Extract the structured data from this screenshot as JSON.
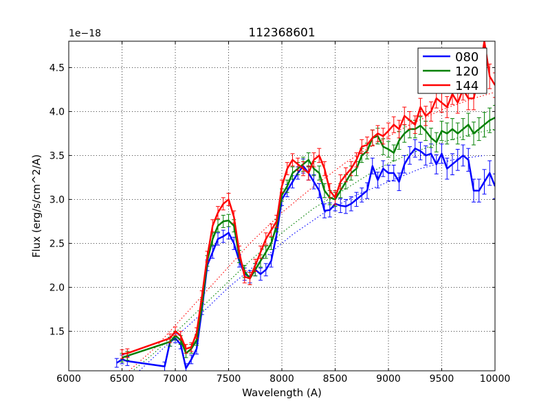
{
  "chart_data": {
    "type": "line",
    "title": "112368601",
    "xlabel": "Wavelength (A)",
    "ylabel": "Flux (erg/s/cm^2/A)",
    "offset_text": "1e−18",
    "xlim": [
      6000,
      10000
    ],
    "ylim": [
      1.05,
      4.8
    ],
    "xticks": [
      6000,
      6500,
      7000,
      7500,
      8000,
      8500,
      9000,
      9500,
      10000
    ],
    "xtick_labels": [
      "6000",
      "6500",
      "7000",
      "7500",
      "8000",
      "8500",
      "9000",
      "9500",
      "10000"
    ],
    "yticks": [
      1.5,
      2.0,
      2.5,
      3.0,
      3.5,
      4.0,
      4.5
    ],
    "ytick_labels": [
      "1.5",
      "2.0",
      "2.5",
      "3.0",
      "3.5",
      "4.0",
      "4.5"
    ],
    "grid": true,
    "legend_position": "top-right",
    "series": [
      {
        "name": "080",
        "color": "#0000ff",
        "x": [
          6450,
          6500,
          6550,
          6900,
          6950,
          7000,
          7050,
          7100,
          7150,
          7200,
          7250,
          7300,
          7350,
          7400,
          7450,
          7500,
          7550,
          7600,
          7650,
          7700,
          7750,
          7800,
          7850,
          7900,
          7950,
          8000,
          8050,
          8100,
          8150,
          8200,
          8250,
          8300,
          8350,
          8400,
          8450,
          8500,
          8550,
          8600,
          8650,
          8700,
          8750,
          8800,
          8850,
          8900,
          8950,
          9000,
          9050,
          9100,
          9150,
          9200,
          9250,
          9300,
          9350,
          9400,
          9450,
          9500,
          9550,
          9600,
          9650,
          9700,
          9750,
          9800,
          9850,
          9900,
          9950,
          10000
        ],
        "y": [
          1.14,
          1.18,
          1.16,
          1.1,
          1.38,
          1.42,
          1.35,
          1.08,
          1.18,
          1.3,
          1.75,
          2.25,
          2.4,
          2.55,
          2.58,
          2.62,
          2.5,
          2.3,
          2.15,
          2.12,
          2.2,
          2.15,
          2.2,
          2.3,
          2.6,
          3.0,
          3.1,
          3.2,
          3.3,
          3.38,
          3.3,
          3.2,
          3.1,
          2.87,
          2.88,
          2.95,
          2.93,
          2.92,
          2.95,
          3.0,
          3.05,
          3.1,
          3.38,
          3.22,
          3.35,
          3.3,
          3.3,
          3.2,
          3.4,
          3.5,
          3.58,
          3.55,
          3.5,
          3.52,
          3.4,
          3.52,
          3.35,
          3.4,
          3.45,
          3.5,
          3.45,
          3.1,
          3.1,
          3.2,
          3.3,
          3.15
        ],
        "error": [
          0.05,
          0.05,
          0.05,
          0.05,
          0.05,
          0.05,
          0.05,
          0.05,
          0.05,
          0.06,
          0.06,
          0.06,
          0.07,
          0.07,
          0.07,
          0.07,
          0.07,
          0.07,
          0.07,
          0.07,
          0.07,
          0.07,
          0.07,
          0.07,
          0.07,
          0.07,
          0.07,
          0.07,
          0.07,
          0.08,
          0.08,
          0.08,
          0.08,
          0.08,
          0.08,
          0.08,
          0.08,
          0.08,
          0.08,
          0.08,
          0.08,
          0.09,
          0.09,
          0.09,
          0.09,
          0.09,
          0.09,
          0.1,
          0.1,
          0.1,
          0.1,
          0.1,
          0.11,
          0.11,
          0.11,
          0.11,
          0.12,
          0.12,
          0.12,
          0.12,
          0.13,
          0.13,
          0.13,
          0.14,
          0.14,
          0.14
        ]
      },
      {
        "name": "120",
        "color": "#008000",
        "x": [
          6500,
          6550,
          6950,
          7000,
          7050,
          7100,
          7150,
          7200,
          7250,
          7300,
          7350,
          7400,
          7450,
          7500,
          7550,
          7600,
          7650,
          7700,
          7750,
          7800,
          7850,
          7900,
          7950,
          8000,
          8050,
          8100,
          8150,
          8200,
          8250,
          8300,
          8350,
          8400,
          8450,
          8500,
          8550,
          8600,
          8650,
          8700,
          8750,
          8800,
          8850,
          8900,
          8950,
          9000,
          9050,
          9100,
          9150,
          9200,
          9250,
          9300,
          9350,
          9400,
          9450,
          9500,
          9550,
          9600,
          9650,
          9700,
          9750,
          9800,
          9850,
          9900,
          9950,
          10000
        ],
        "y": [
          1.2,
          1.22,
          1.38,
          1.45,
          1.4,
          1.25,
          1.3,
          1.4,
          1.8,
          2.3,
          2.55,
          2.7,
          2.75,
          2.76,
          2.7,
          2.35,
          2.18,
          2.1,
          2.2,
          2.3,
          2.4,
          2.5,
          2.7,
          3.05,
          3.15,
          3.3,
          3.35,
          3.4,
          3.45,
          3.35,
          3.3,
          3.1,
          3.02,
          3.0,
          3.1,
          3.2,
          3.3,
          3.35,
          3.5,
          3.55,
          3.7,
          3.72,
          3.6,
          3.57,
          3.53,
          3.67,
          3.75,
          3.8,
          3.8,
          3.84,
          3.78,
          3.7,
          3.65,
          3.78,
          3.75,
          3.8,
          3.75,
          3.8,
          3.85,
          3.75,
          3.8,
          3.85,
          3.9,
          3.93
        ],
        "error": [
          0.05,
          0.05,
          0.05,
          0.05,
          0.05,
          0.05,
          0.05,
          0.06,
          0.06,
          0.06,
          0.07,
          0.07,
          0.07,
          0.07,
          0.07,
          0.07,
          0.07,
          0.07,
          0.07,
          0.07,
          0.07,
          0.07,
          0.07,
          0.07,
          0.07,
          0.07,
          0.07,
          0.08,
          0.08,
          0.08,
          0.08,
          0.08,
          0.08,
          0.08,
          0.08,
          0.08,
          0.08,
          0.08,
          0.08,
          0.09,
          0.09,
          0.09,
          0.09,
          0.09,
          0.09,
          0.1,
          0.1,
          0.1,
          0.1,
          0.1,
          0.11,
          0.11,
          0.11,
          0.11,
          0.12,
          0.12,
          0.12,
          0.12,
          0.13,
          0.13,
          0.13,
          0.14,
          0.14,
          0.14
        ]
      },
      {
        "name": "144",
        "color": "#ff0000",
        "x": [
          6500,
          6550,
          6950,
          7000,
          7050,
          7100,
          7150,
          7200,
          7250,
          7300,
          7350,
          7400,
          7450,
          7500,
          7550,
          7600,
          7650,
          7700,
          7750,
          7800,
          7850,
          7900,
          7950,
          8000,
          8050,
          8100,
          8150,
          8200,
          8250,
          8300,
          8350,
          8400,
          8450,
          8500,
          8550,
          8600,
          8650,
          8700,
          8750,
          8800,
          8850,
          8900,
          8950,
          9000,
          9050,
          9100,
          9150,
          9200,
          9250,
          9300,
          9350,
          9400,
          9450,
          9500,
          9550,
          9600,
          9650,
          9700,
          9750,
          9800,
          9850,
          9900,
          9950,
          10000
        ],
        "y": [
          1.24,
          1.25,
          1.42,
          1.5,
          1.45,
          1.3,
          1.32,
          1.48,
          1.9,
          2.35,
          2.7,
          2.85,
          2.95,
          3.0,
          2.8,
          2.4,
          2.12,
          2.1,
          2.25,
          2.4,
          2.55,
          2.65,
          2.75,
          3.15,
          3.35,
          3.45,
          3.4,
          3.35,
          3.3,
          3.45,
          3.5,
          3.35,
          3.1,
          3.02,
          3.2,
          3.28,
          3.35,
          3.45,
          3.6,
          3.62,
          3.7,
          3.75,
          3.72,
          3.78,
          3.85,
          3.8,
          3.95,
          3.9,
          3.85,
          4.05,
          3.95,
          4.0,
          4.15,
          4.1,
          4.05,
          4.2,
          4.1,
          4.25,
          4.15,
          4.15,
          4.4,
          4.8,
          4.4,
          4.3
        ],
        "error": [
          0.05,
          0.05,
          0.05,
          0.05,
          0.05,
          0.05,
          0.05,
          0.06,
          0.06,
          0.06,
          0.07,
          0.07,
          0.07,
          0.07,
          0.07,
          0.07,
          0.07,
          0.07,
          0.07,
          0.07,
          0.07,
          0.07,
          0.07,
          0.07,
          0.07,
          0.07,
          0.07,
          0.08,
          0.08,
          0.08,
          0.08,
          0.08,
          0.08,
          0.08,
          0.08,
          0.08,
          0.08,
          0.08,
          0.08,
          0.09,
          0.09,
          0.09,
          0.09,
          0.09,
          0.09,
          0.1,
          0.1,
          0.1,
          0.1,
          0.1,
          0.11,
          0.11,
          0.11,
          0.11,
          0.12,
          0.12,
          0.12,
          0.12,
          0.13,
          0.13,
          0.13,
          0.14,
          0.14,
          0.14
        ]
      }
    ],
    "fits": [
      {
        "color": "#0000ff",
        "style": "dotted",
        "x": [
          6600,
          6900,
          7200,
          7500,
          7800,
          8100,
          8400,
          8700,
          9000,
          9300,
          9600,
          9900
        ],
        "y": [
          0.98,
          1.32,
          1.65,
          2.0,
          2.3,
          2.6,
          2.85,
          3.05,
          3.2,
          3.35,
          3.45,
          3.5
        ]
      },
      {
        "color": "#008000",
        "style": "dotted",
        "x": [
          6500,
          6800,
          7100,
          7400,
          7700,
          8000,
          8300,
          8600,
          8900,
          9200,
          9500,
          9800,
          10000
        ],
        "y": [
          0.95,
          1.25,
          1.6,
          1.95,
          2.3,
          2.62,
          2.9,
          3.12,
          3.35,
          3.52,
          3.65,
          3.75,
          3.8
        ]
      },
      {
        "color": "#ff0000",
        "style": "dotted",
        "x": [
          6500,
          6800,
          7100,
          7400,
          7700,
          8000,
          8300,
          8600,
          8900,
          9200,
          9500,
          9800,
          10000
        ],
        "y": [
          0.98,
          1.3,
          1.7,
          2.1,
          2.5,
          2.85,
          3.15,
          3.42,
          3.65,
          3.85,
          4.02,
          4.15,
          4.22
        ]
      }
    ]
  }
}
